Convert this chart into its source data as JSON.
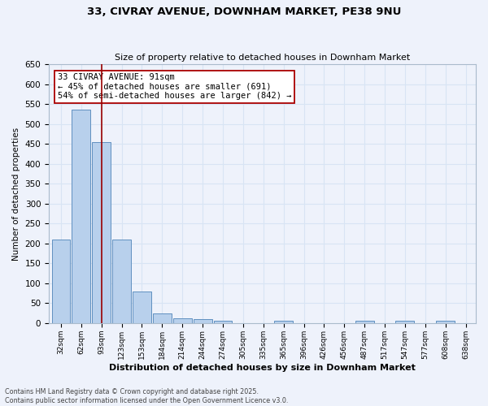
{
  "title1": "33, CIVRAY AVENUE, DOWNHAM MARKET, PE38 9NU",
  "title2": "Size of property relative to detached houses in Downham Market",
  "xlabel": "Distribution of detached houses by size in Downham Market",
  "ylabel": "Number of detached properties",
  "footer1": "Contains HM Land Registry data © Crown copyright and database right 2025.",
  "footer2": "Contains public sector information licensed under the Open Government Licence v3.0.",
  "annotation_line1": "33 CIVRAY AVENUE: 91sqm",
  "annotation_line2": "← 45% of detached houses are smaller (691)",
  "annotation_line3": "54% of semi-detached houses are larger (842) →",
  "bar_labels": [
    "32sqm",
    "62sqm",
    "93sqm",
    "123sqm",
    "153sqm",
    "184sqm",
    "214sqm",
    "244sqm",
    "274sqm",
    "305sqm",
    "335sqm",
    "365sqm",
    "396sqm",
    "426sqm",
    "456sqm",
    "487sqm",
    "517sqm",
    "547sqm",
    "577sqm",
    "608sqm",
    "638sqm"
  ],
  "bar_values": [
    210,
    535,
    455,
    210,
    80,
    25,
    13,
    10,
    5,
    0,
    0,
    5,
    0,
    0,
    0,
    5,
    0,
    5,
    0,
    5,
    0
  ],
  "bar_color": "#b8d0ec",
  "bar_edge_color": "#6090c0",
  "red_line_x": 2,
  "ylim": [
    0,
    650
  ],
  "yticks": [
    0,
    50,
    100,
    150,
    200,
    250,
    300,
    350,
    400,
    450,
    500,
    550,
    600,
    650
  ],
  "background_color": "#eef2fb",
  "grid_color": "#d8e4f4",
  "annotation_line1_fontsize": 7.5,
  "annotation_fontsize": 7.5
}
